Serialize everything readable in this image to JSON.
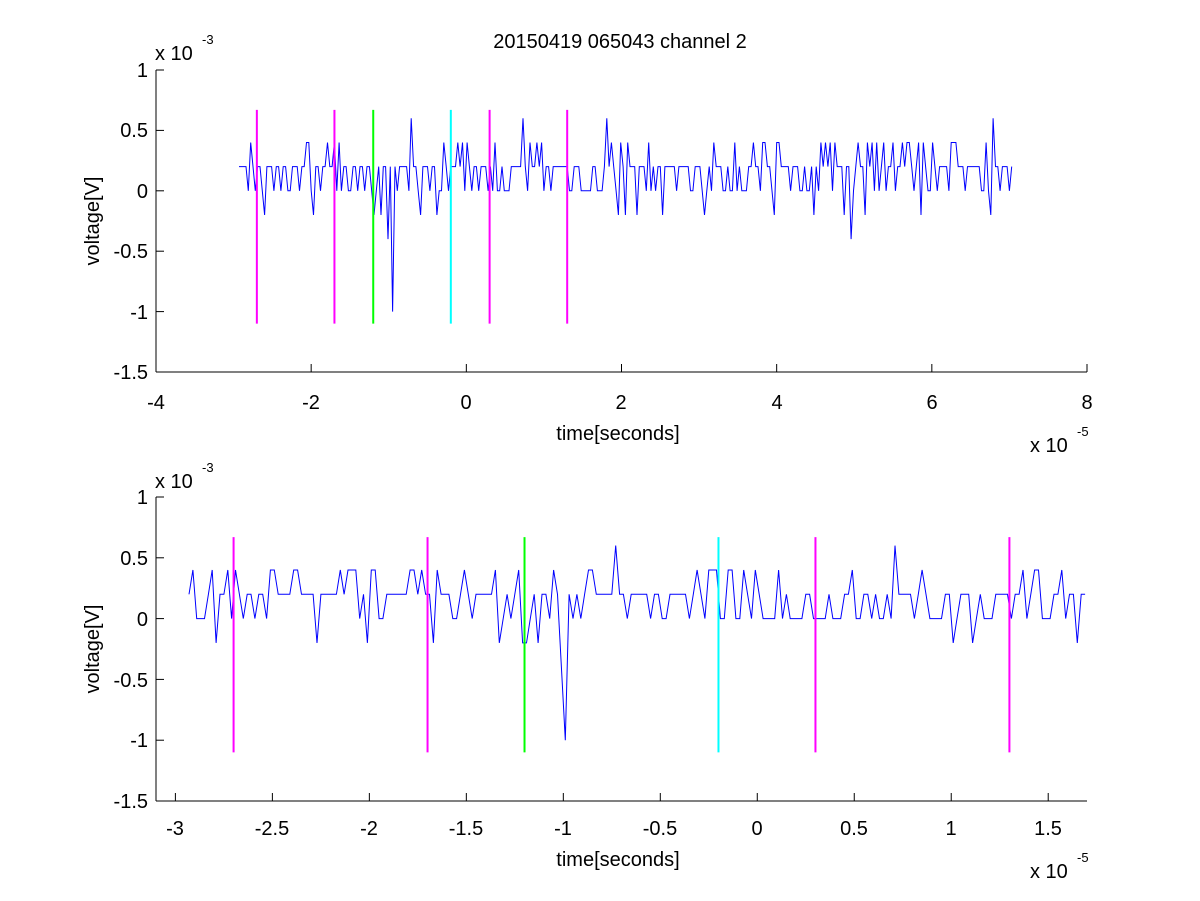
{
  "chart_data": [
    {
      "type": "line",
      "title": "20150419 065043 channel 2",
      "xlabel": "time[seconds]",
      "ylabel": "voltage[V]",
      "x_exponent_label": {
        "base": "x 10",
        "exp": "-5"
      },
      "y_exponent_label": {
        "base": "x 10",
        "exp": "-3"
      },
      "x_ticks": [
        "-4",
        "-2",
        "0",
        "2",
        "4",
        "6",
        "8"
      ],
      "y_ticks": [
        "1",
        "0.5",
        "0",
        "-0.5",
        "-1",
        "-1.5"
      ],
      "xlim": [
        -4,
        8
      ],
      "ylim": [
        -1.5,
        1
      ],
      "x_units_scale": "1e-5 s",
      "y_units_scale": "1e-3 V",
      "grid": false,
      "signal": {
        "color": "#0000ff",
        "x_range": [
          -2.93,
          7.03
        ],
        "step": 0.03,
        "baseline": 0.2,
        "levels": [
          -0.2,
          0.0,
          0.2,
          0.4
        ],
        "notable_points": [
          {
            "x": -2.6,
            "y": -0.2
          },
          {
            "x": -1.2,
            "y": -0.2
          },
          {
            "x": -1.0,
            "y": -0.4
          },
          {
            "x": -0.95,
            "y": -1.0
          },
          {
            "x": -0.72,
            "y": 0.6
          },
          {
            "x": 0.72,
            "y": 0.6
          },
          {
            "x": 1.8,
            "y": 0.6
          },
          {
            "x": 4.95,
            "y": -0.4
          },
          {
            "x": 6.8,
            "y": 0.6
          }
        ]
      },
      "markers": [
        {
          "x": -2.7,
          "color": "#ff00ff"
        },
        {
          "x": -1.7,
          "color": "#ff00ff"
        },
        {
          "x": -1.2,
          "color": "#00ff00"
        },
        {
          "x": -0.2,
          "color": "#00ffff"
        },
        {
          "x": 0.3,
          "color": "#ff00ff"
        },
        {
          "x": 1.3,
          "color": "#ff00ff"
        }
      ],
      "marker_yrange": [
        -1.1,
        0.67
      ]
    },
    {
      "type": "line",
      "title": "",
      "xlabel": "time[seconds]",
      "ylabel": "voltage[V]",
      "x_exponent_label": {
        "base": "x 10",
        "exp": "-5"
      },
      "y_exponent_label": {
        "base": "x 10",
        "exp": "-3"
      },
      "x_ticks": [
        "-3",
        "-2.5",
        "-2",
        "-1.5",
        "-1",
        "-0.5",
        "0",
        "0.5",
        "1",
        "1.5"
      ],
      "y_ticks": [
        "1",
        "0.5",
        "0",
        "-0.5",
        "-1",
        "-1.5"
      ],
      "xlim": [
        -3.1,
        1.7
      ],
      "ylim": [
        -1.5,
        1
      ],
      "x_units_scale": "1e-5 s",
      "y_units_scale": "1e-3 V",
      "grid": false,
      "signal": {
        "color": "#0000ff",
        "x_range": [
          -2.93,
          1.7
        ],
        "step": 0.02,
        "baseline": 0.2,
        "levels": [
          -0.2,
          0.0,
          0.2,
          0.4
        ],
        "notable_points": [
          {
            "x": -2.8,
            "y": -0.2
          },
          {
            "x": -2.0,
            "y": -0.2
          },
          {
            "x": -1.2,
            "y": -0.2
          },
          {
            "x": -1.0,
            "y": -0.4
          },
          {
            "x": -0.98,
            "y": -1.0
          },
          {
            "x": -0.72,
            "y": 0.6
          },
          {
            "x": 0.72,
            "y": 0.6
          },
          {
            "x": 1.65,
            "y": -0.2
          }
        ]
      },
      "markers": [
        {
          "x": -2.7,
          "color": "#ff00ff"
        },
        {
          "x": -1.7,
          "color": "#ff00ff"
        },
        {
          "x": -1.2,
          "color": "#00ff00"
        },
        {
          "x": -0.2,
          "color": "#00ffff"
        },
        {
          "x": 0.3,
          "color": "#ff00ff"
        },
        {
          "x": 1.3,
          "color": "#ff00ff"
        }
      ],
      "marker_yrange": [
        -1.1,
        0.67
      ]
    }
  ]
}
